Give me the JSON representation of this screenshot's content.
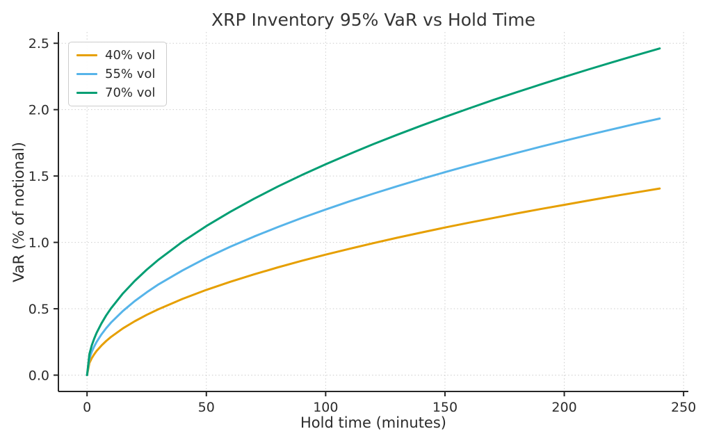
{
  "chart_data": {
    "type": "line",
    "title": "XRP Inventory 95% VaR vs Hold Time",
    "xlabel": "Hold time (minutes)",
    "ylabel": "VaR (% of notional)",
    "xlim": [
      -12,
      252
    ],
    "ylim": [
      -0.123,
      2.585
    ],
    "xticks": [
      0,
      50,
      100,
      150,
      200,
      250
    ],
    "xticklabels": [
      "0",
      "50",
      "100",
      "150",
      "200",
      "250"
    ],
    "yticks": [
      0.0,
      0.5,
      1.0,
      1.5,
      2.0,
      2.5
    ],
    "yticklabels": [
      "0.0",
      "0.5",
      "1.0",
      "1.5",
      "2.0",
      "2.5"
    ],
    "grid": true,
    "grid_style": "dotted",
    "grid_color": "#cccccc",
    "spine_color": "#262626",
    "text_color": "#2b2b2b",
    "background_color": "#ffffff",
    "legend_position": "upper-left",
    "x": [
      0,
      1,
      2,
      3,
      4,
      6,
      8,
      10,
      15,
      20,
      25,
      30,
      40,
      50,
      60,
      70,
      80,
      90,
      100,
      110,
      120,
      130,
      140,
      150,
      160,
      170,
      180,
      190,
      200,
      210,
      220,
      230,
      240
    ],
    "series": [
      {
        "name": "40% vol",
        "color": "#E69F00",
        "values": [
          0,
          0.091,
          0.128,
          0.157,
          0.182,
          0.222,
          0.257,
          0.287,
          0.352,
          0.406,
          0.454,
          0.497,
          0.574,
          0.642,
          0.703,
          0.759,
          0.812,
          0.861,
          0.908,
          0.952,
          0.994,
          1.035,
          1.074,
          1.112,
          1.148,
          1.183,
          1.218,
          1.251,
          1.283,
          1.315,
          1.346,
          1.376,
          1.406
        ]
      },
      {
        "name": "55% vol",
        "color": "#56B4E9",
        "values": [
          0,
          0.125,
          0.176,
          0.216,
          0.25,
          0.306,
          0.353,
          0.395,
          0.483,
          0.558,
          0.624,
          0.684,
          0.789,
          0.883,
          0.967,
          1.044,
          1.116,
          1.184,
          1.248,
          1.309,
          1.367,
          1.423,
          1.477,
          1.529,
          1.579,
          1.627,
          1.674,
          1.72,
          1.765,
          1.809,
          1.851,
          1.893,
          1.933
        ]
      },
      {
        "name": "70% vol",
        "color": "#009E73",
        "values": [
          0,
          0.159,
          0.225,
          0.275,
          0.318,
          0.389,
          0.449,
          0.502,
          0.615,
          0.71,
          0.794,
          0.87,
          1.005,
          1.123,
          1.23,
          1.329,
          1.421,
          1.507,
          1.588,
          1.666,
          1.74,
          1.811,
          1.879,
          1.945,
          2.009,
          2.071,
          2.131,
          2.189,
          2.246,
          2.302,
          2.356,
          2.409,
          2.461
        ]
      }
    ]
  }
}
